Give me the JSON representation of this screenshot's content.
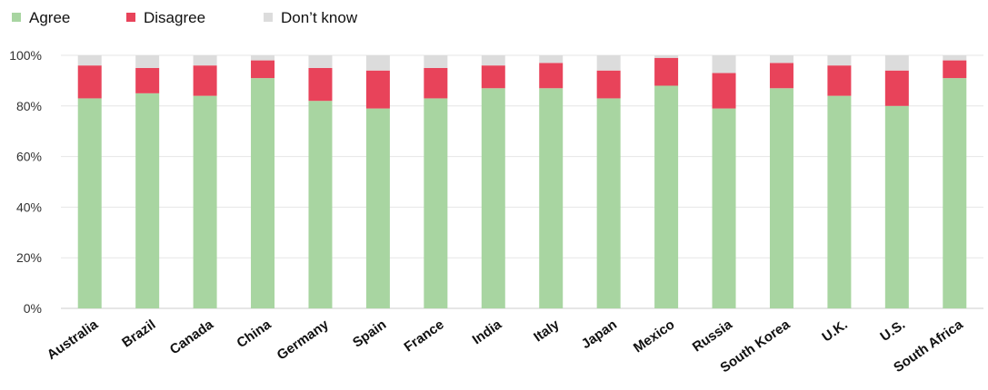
{
  "chart_data": {
    "type": "bar",
    "stacked": true,
    "title": "",
    "xlabel": "",
    "ylabel": "",
    "ylim": [
      0,
      100
    ],
    "yticks": [
      "0%",
      "20%",
      "40%",
      "60%",
      "80%",
      "100%"
    ],
    "grid": true,
    "legend_position": "top-left",
    "categories": [
      "Australia",
      "Brazil",
      "Canada",
      "China",
      "Germany",
      "Spain",
      "France",
      "India",
      "Italy",
      "Japan",
      "Mexico",
      "Russia",
      "South Korea",
      "U.K.",
      "U.S.",
      "South Africa"
    ],
    "series": [
      {
        "name": "Agree",
        "color": "#a8d5a1",
        "values": [
          83,
          85,
          84,
          91,
          82,
          79,
          83,
          87,
          87,
          83,
          88,
          79,
          87,
          84,
          80,
          91
        ]
      },
      {
        "name": "Disagree",
        "color": "#e8435a",
        "values": [
          13,
          10,
          12,
          7,
          13,
          15,
          12,
          9,
          10,
          11,
          11,
          14,
          10,
          12,
          14,
          7
        ]
      },
      {
        "name": "Don’t know",
        "color": "#dcdcdc",
        "values": [
          4,
          5,
          4,
          2,
          5,
          6,
          5,
          4,
          3,
          6,
          1,
          7,
          3,
          4,
          6,
          2
        ]
      }
    ]
  }
}
